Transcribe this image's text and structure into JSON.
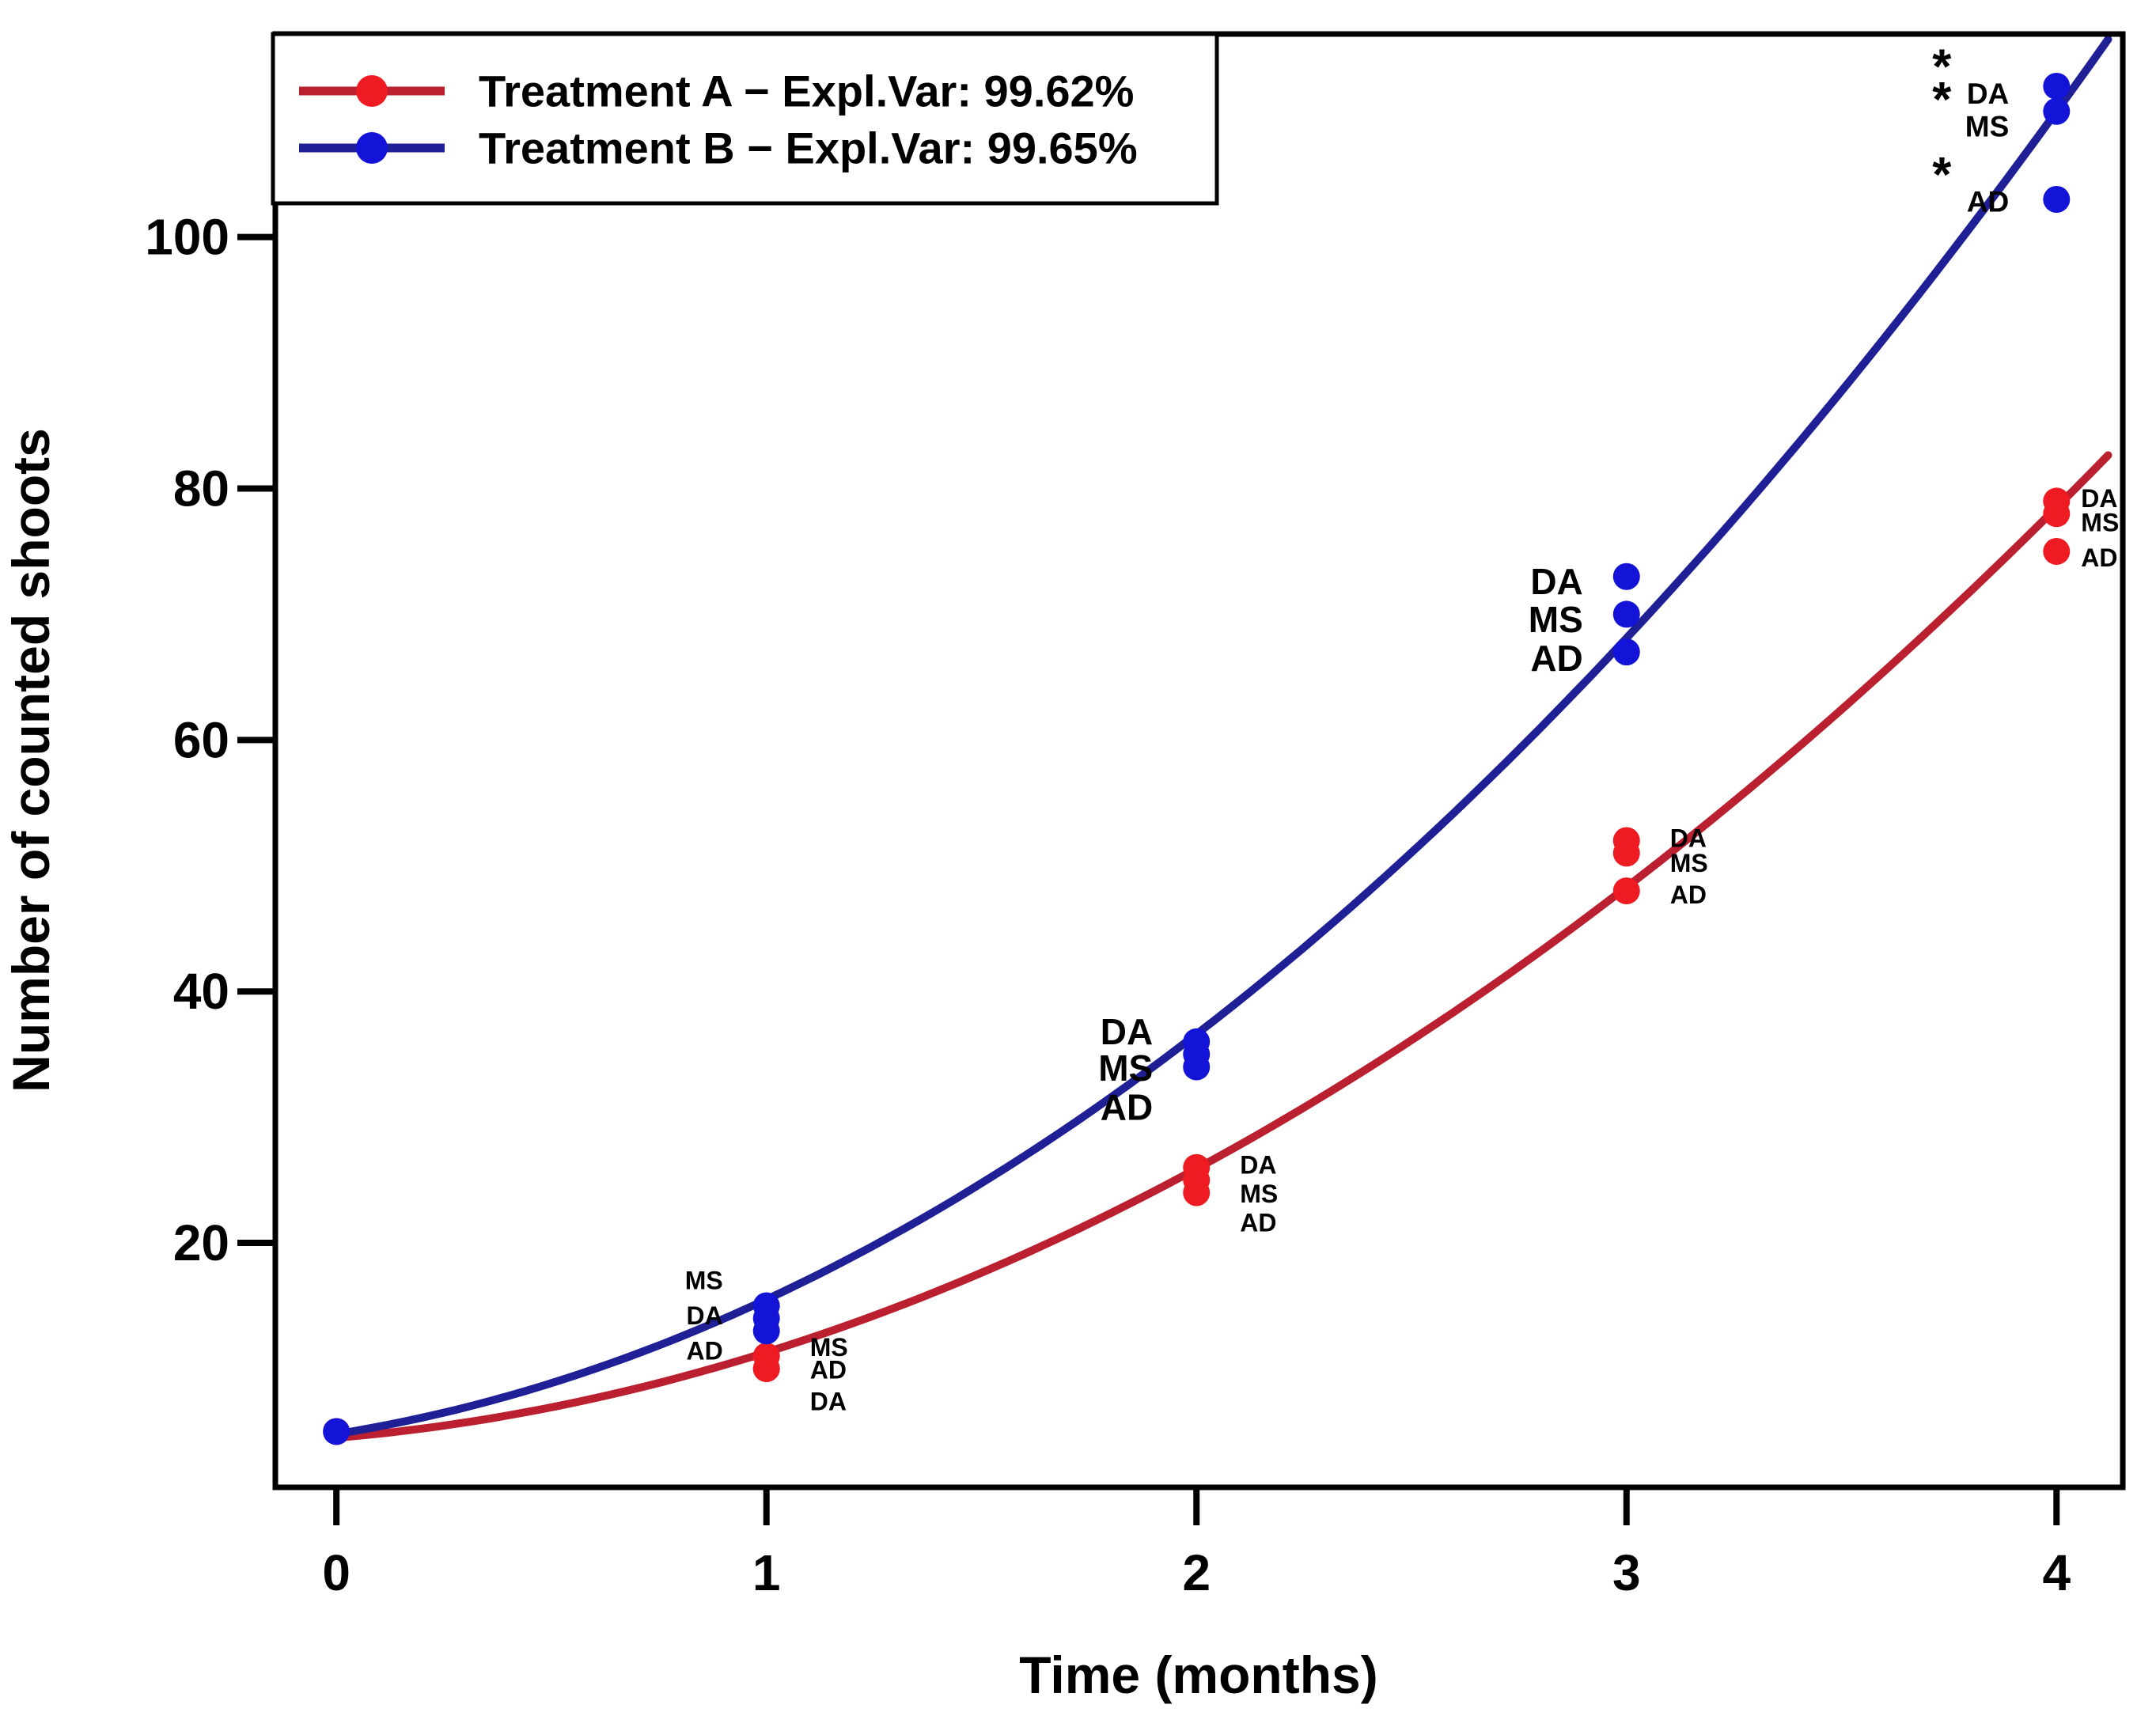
{
  "figure": {
    "background": "#ffffff",
    "text_color": "#000000"
  },
  "chart_data": {
    "type": "scatter",
    "title": "",
    "xlabel": "Time (months)",
    "ylabel": "Number of counted shoots",
    "x_ticks": [
      "0",
      "1",
      "2",
      "3",
      "4"
    ],
    "x_tick_values": [
      0,
      1,
      2,
      3,
      4
    ],
    "y_ticks": [
      "20",
      "40",
      "60",
      "80",
      "100"
    ],
    "y_tick_values": [
      20,
      40,
      60,
      80,
      100
    ],
    "xlim": [
      -0.142,
      4.154
    ],
    "ylim": [
      0.56,
      116.15
    ],
    "grid": false,
    "legend_position": "top-left",
    "significance_marker": "*",
    "series": [
      {
        "name": "Treatment A",
        "legend_label": "Treatment A − Expl.Var: 99.62%",
        "expl_var_pct": 99.62,
        "point_color": "#ee1b23",
        "line_color": "#bb2030",
        "fit_quadratic": {
          "a": 4.5,
          "b": 2.9,
          "c": 3.9
        },
        "points": [
          {
            "x": 0,
            "y": 5
          },
          {
            "x": 1,
            "y": 11,
            "label": "MS",
            "label_y": 11.7,
            "side": "right",
            "size": "small"
          },
          {
            "x": 1,
            "y": 10,
            "label": "AD",
            "label_y": 9.9,
            "side": "right",
            "size": "small"
          },
          {
            "x": 1,
            "y": 10,
            "label": "DA",
            "label_y": 7.4,
            "side": "right",
            "size": "small"
          },
          {
            "x": 2,
            "y": 26,
            "label": "DA",
            "label_y": 26.2,
            "side": "right",
            "size": "small"
          },
          {
            "x": 2,
            "y": 25,
            "label": "MS",
            "label_y": 23.9,
            "side": "right",
            "size": "small"
          },
          {
            "x": 2,
            "y": 24,
            "label": "AD",
            "label_y": 21.6,
            "side": "right",
            "size": "small"
          },
          {
            "x": 3,
            "y": 52,
            "label": "DA",
            "label_y": 52.2,
            "side": "right",
            "size": "small"
          },
          {
            "x": 3,
            "y": 51,
            "label": "MS",
            "label_y": 50.2,
            "side": "right",
            "size": "small"
          },
          {
            "x": 3,
            "y": 48,
            "label": "AD",
            "label_y": 47.7,
            "side": "right",
            "size": "small"
          },
          {
            "x": 4,
            "y": 79,
            "label": "DA",
            "label_y": 79.2,
            "side": "right",
            "size": "small"
          },
          {
            "x": 4,
            "y": 78,
            "label": "MS",
            "label_y": 77.3,
            "side": "right",
            "size": "small"
          },
          {
            "x": 4,
            "y": 75,
            "label": "AD",
            "label_y": 74.5,
            "side": "right",
            "size": "small"
          }
        ]
      },
      {
        "name": "Treatment B",
        "legend_label": "Treatment B − Expl.Var: 99.65%",
        "expl_var_pct": 99.65,
        "point_color": "#1414d8",
        "line_color": "#1f1f96",
        "fit_quadratic": {
          "a": 4.8,
          "b": 5.5,
          "c": 5.2
        },
        "points": [
          {
            "x": 0,
            "y": 5
          },
          {
            "x": 1,
            "y": 15,
            "label": "MS",
            "label_y": 17.0,
            "side": "left",
            "size": "small"
          },
          {
            "x": 1,
            "y": 14,
            "label": "DA",
            "label_y": 14.2,
            "side": "left",
            "size": "small"
          },
          {
            "x": 1,
            "y": 13,
            "label": "AD",
            "label_y": 11.4,
            "side": "left",
            "size": "small"
          },
          {
            "x": 2,
            "y": 36,
            "label": "DA",
            "label_y": 36.8,
            "side": "left",
            "size": "large"
          },
          {
            "x": 2,
            "y": 35,
            "label": "MS",
            "label_y": 33.9,
            "side": "left",
            "size": "large"
          },
          {
            "x": 2,
            "y": 34,
            "label": "AD",
            "label_y": 30.8,
            "side": "left",
            "size": "large"
          },
          {
            "x": 3,
            "y": 73,
            "label": "DA",
            "label_y": 72.6,
            "side": "left",
            "size": "large"
          },
          {
            "x": 3,
            "y": 70,
            "label": "MS",
            "label_y": 69.6,
            "side": "left",
            "size": "large"
          },
          {
            "x": 3,
            "y": 67,
            "label": "AD",
            "label_y": 66.5,
            "side": "left",
            "size": "large"
          },
          {
            "x": 4,
            "y": 112,
            "label": "DA",
            "label_y": 111.4,
            "side": "left",
            "size": "medium",
            "star": true
          },
          {
            "x": 4,
            "y": 110,
            "label": "MS",
            "label_y": 108.8,
            "side": "left",
            "size": "medium",
            "star": true
          },
          {
            "x": 4,
            "y": 103,
            "label": "AD",
            "label_y": 102.8,
            "side": "left",
            "size": "medium",
            "star": true
          }
        ]
      }
    ]
  }
}
